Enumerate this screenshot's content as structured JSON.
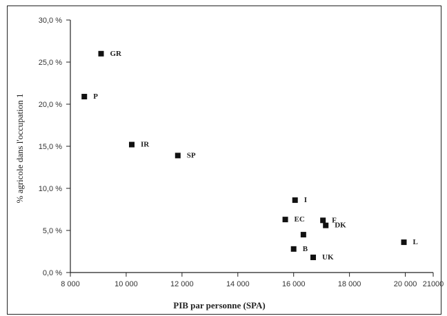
{
  "chart_data": {
    "type": "scatter",
    "title": "",
    "xlabel": "PIB par personne (SPA)",
    "ylabel": "% agricole dans l'occupation 1",
    "xlim": [
      8000,
      21000
    ],
    "ylim": [
      0,
      30
    ],
    "x_ticks": [
      8000,
      10000,
      12000,
      14000,
      16000,
      18000,
      20000,
      21000
    ],
    "x_tick_labels": [
      "8 000",
      "10 000",
      "12 000",
      "14 000",
      "16 000",
      "18 000",
      "20 000",
      "21000"
    ],
    "y_ticks": [
      0,
      5,
      10,
      15,
      20,
      25,
      30
    ],
    "y_tick_labels": [
      "0,0 %",
      "5,0 %",
      "10,0 %",
      "15,0 %",
      "20,0 %",
      "25,0 %",
      "30,0 %"
    ],
    "grid": false,
    "marker_color": "#111111",
    "points": [
      {
        "label": "GR",
        "x": 9100,
        "y": 26.0
      },
      {
        "label": "P",
        "x": 8500,
        "y": 20.9
      },
      {
        "label": "IR",
        "x": 10200,
        "y": 15.2
      },
      {
        "label": "SP",
        "x": 11850,
        "y": 13.9
      },
      {
        "label": "I",
        "x": 16050,
        "y": 8.6
      },
      {
        "label": "EC",
        "x": 15700,
        "y": 6.3
      },
      {
        "label": "F",
        "x": 17050,
        "y": 6.2
      },
      {
        "label": "DK",
        "x": 17150,
        "y": 5.6
      },
      {
        "label": "",
        "x": 16350,
        "y": 4.5
      },
      {
        "label": "B",
        "x": 16000,
        "y": 2.8
      },
      {
        "label": "UK",
        "x": 16700,
        "y": 1.8
      },
      {
        "label": "L",
        "x": 19950,
        "y": 3.6
      }
    ]
  }
}
